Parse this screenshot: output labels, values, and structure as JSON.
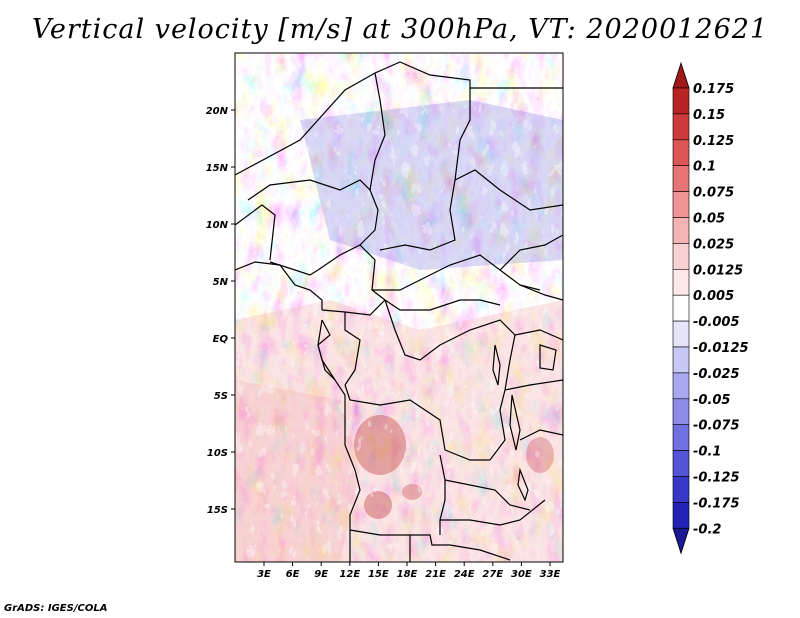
{
  "title": "Vertical velocity [m/s] at 300hPa, VT: 2020012621",
  "footer": "GrADS: IGES/COLA",
  "map": {
    "variable": "Vertical velocity",
    "units": "m/s",
    "level": "300hPa",
    "valid_time": "2020012621",
    "lat_ticks": [
      "20N",
      "15N",
      "10N",
      "5N",
      "EQ",
      "5S",
      "10S",
      "15S"
    ],
    "lon_ticks": [
      "3E",
      "6E",
      "9E",
      "12E",
      "15E",
      "18E",
      "21E",
      "24E",
      "27E",
      "30E",
      "33E"
    ]
  },
  "colorbar": {
    "labels": [
      "0.175",
      "0.15",
      "0.125",
      "0.1",
      "0.075",
      "0.05",
      "0.025",
      "0.0125",
      "0.005",
      "-0.005",
      "-0.0125",
      "-0.025",
      "-0.05",
      "-0.075",
      "-0.1",
      "-0.125",
      "-0.175",
      "-0.2"
    ],
    "colors": [
      "#a01818",
      "#b82424",
      "#cc3a3a",
      "#dc5656",
      "#e67474",
      "#ee9494",
      "#f4b4b4",
      "#f8d2d2",
      "#fce8e8",
      "#ffffff",
      "#e4e4fa",
      "#c8c8f6",
      "#a8a8f0",
      "#8c8ce8",
      "#7070e0",
      "#5454d6",
      "#3838c8",
      "#2222b4",
      "#1414a0"
    ],
    "end_colors": {
      "top": "#a01818",
      "bottom": "#1a1a96"
    }
  }
}
